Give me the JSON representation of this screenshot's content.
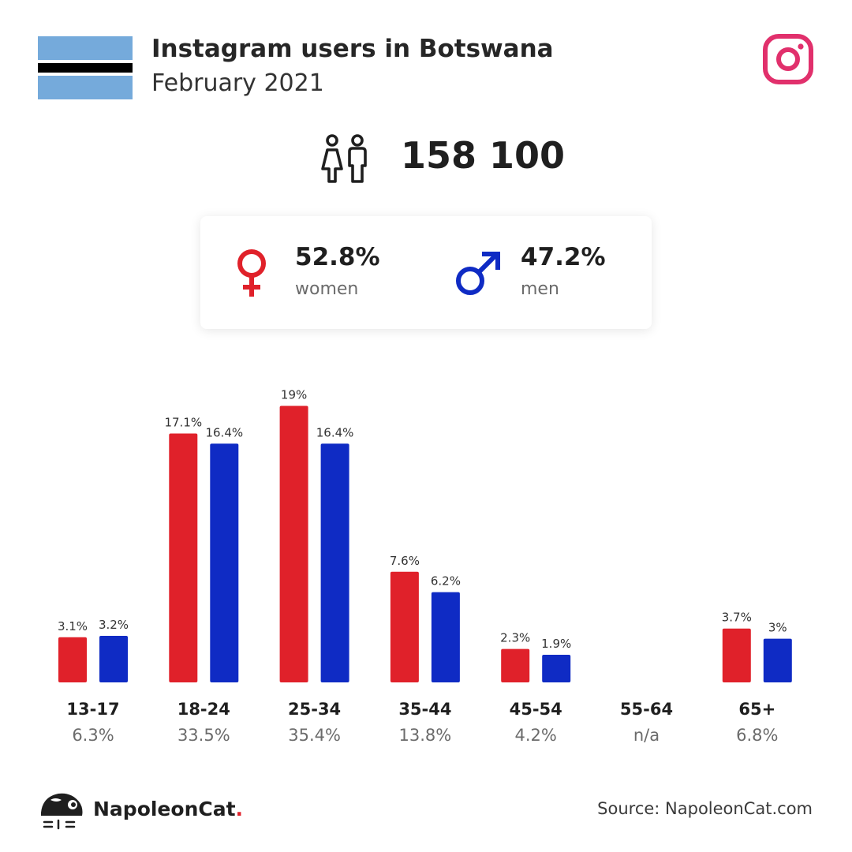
{
  "header": {
    "title": "Instagram users in Botswana",
    "subtitle": "February 2021"
  },
  "total_users": "158 100",
  "gender": {
    "women": {
      "percent": "52.8%",
      "label": "women"
    },
    "men": {
      "percent": "47.2%",
      "label": "men"
    }
  },
  "colors": {
    "women": "#e0212a",
    "men": "#0f2bc4",
    "flag_blue": "#75aadb",
    "flag_black": "#000000",
    "instagram": "#e1306c",
    "text_dark": "#1f1f1f",
    "text_muted": "#6b6b6b"
  },
  "icons": {
    "flag": "botswana-flag-icon",
    "instagram": "instagram-icon",
    "people": "people-icon",
    "female": "female-symbol-icon",
    "male": "male-symbol-icon",
    "brand": "napoleoncat-logo-icon"
  },
  "chart_data": {
    "type": "bar",
    "categories": [
      "13-17",
      "18-24",
      "25-34",
      "35-44",
      "45-54",
      "55-64",
      "65+"
    ],
    "totals": [
      "6.3%",
      "33.5%",
      "35.4%",
      "13.8%",
      "4.2%",
      "n/a",
      "6.8%"
    ],
    "series": [
      {
        "values": [
          3.1,
          17.1,
          19,
          7.6,
          2.3,
          null,
          3.7
        ],
        "labels": [
          "3.1%",
          "17.1%",
          "19%",
          "7.6%",
          "2.3%",
          "",
          "3.7%"
        ],
        "color": "#e0212a"
      },
      {
        "values": [
          3.2,
          16.4,
          16.4,
          6.2,
          1.9,
          null,
          3
        ],
        "labels": [
          "3.2%",
          "16.4%",
          "16.4%",
          "6.2%",
          "1.9%",
          "",
          "3%"
        ],
        "color": "#0f2bc4"
      }
    ],
    "ylim": [
      0,
      19
    ],
    "grid": false,
    "legend": "none"
  },
  "footer": {
    "brand_name": "NapoleonCat",
    "brand_dot": ".",
    "source": "Source: NapoleonCat.com"
  }
}
